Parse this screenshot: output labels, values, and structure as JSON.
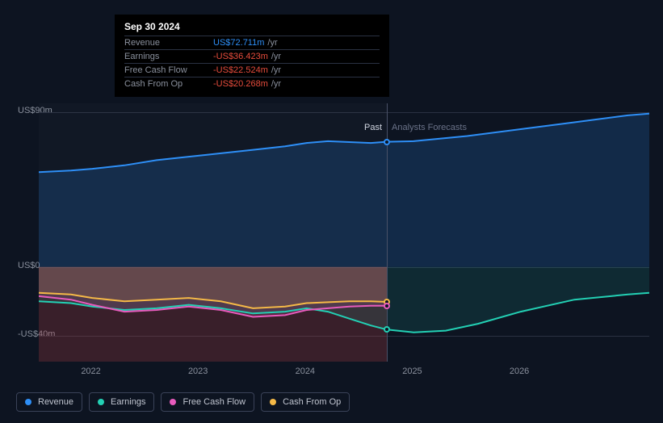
{
  "tooltip": {
    "date": "Sep 30 2024",
    "rows": [
      {
        "label": "Revenue",
        "value": "US$72.711m",
        "unit": "/yr",
        "color": "#2e8ff7"
      },
      {
        "label": "Earnings",
        "value": "-US$36.423m",
        "unit": "/yr",
        "color": "#e74c3c"
      },
      {
        "label": "Free Cash Flow",
        "value": "-US$22.524m",
        "unit": "/yr",
        "color": "#e74c3c"
      },
      {
        "label": "Cash From Op",
        "value": "-US$20.268m",
        "unit": "/yr",
        "color": "#e74c3c"
      }
    ]
  },
  "chart": {
    "background": "#0d1421",
    "y_axis": {
      "labels": [
        {
          "text": "US$90m",
          "value": 90
        },
        {
          "text": "US$0",
          "value": 0
        },
        {
          "text": "-US$40m",
          "value": -40
        }
      ],
      "min": -55,
      "max": 95
    },
    "x_axis": {
      "labels": [
        "2022",
        "2023",
        "2024",
        "2025",
        "2026"
      ],
      "min": 2021.5,
      "max": 2027.2
    },
    "divider": {
      "x": 2024.75,
      "past_label": "Past",
      "past_color": "#d0d5e0",
      "forecast_label": "Analysts Forecasts",
      "forecast_color": "#6a7288"
    },
    "series": {
      "revenue": {
        "label": "Revenue",
        "color": "#2e8ff7",
        "fill": "rgba(46,143,247,0.18)",
        "points": [
          [
            2021.5,
            55
          ],
          [
            2021.8,
            56
          ],
          [
            2022.0,
            57
          ],
          [
            2022.3,
            59
          ],
          [
            2022.6,
            62
          ],
          [
            2022.9,
            64
          ],
          [
            2023.2,
            66
          ],
          [
            2023.5,
            68
          ],
          [
            2023.8,
            70
          ],
          [
            2024.0,
            72
          ],
          [
            2024.2,
            73
          ],
          [
            2024.4,
            72.5
          ],
          [
            2024.6,
            72
          ],
          [
            2024.75,
            72.7
          ],
          [
            2025.0,
            73
          ],
          [
            2025.5,
            76
          ],
          [
            2026.0,
            80
          ],
          [
            2026.5,
            84
          ],
          [
            2027.0,
            88
          ],
          [
            2027.2,
            89
          ]
        ]
      },
      "earnings": {
        "label": "Earnings",
        "color": "#23d0b4",
        "fill": "rgba(35,208,180,0.12)",
        "points": [
          [
            2021.5,
            -20
          ],
          [
            2021.8,
            -21
          ],
          [
            2022.0,
            -23
          ],
          [
            2022.3,
            -25
          ],
          [
            2022.6,
            -24
          ],
          [
            2022.9,
            -22
          ],
          [
            2023.2,
            -24
          ],
          [
            2023.5,
            -27
          ],
          [
            2023.8,
            -26
          ],
          [
            2024.0,
            -24
          ],
          [
            2024.2,
            -26
          ],
          [
            2024.4,
            -30
          ],
          [
            2024.6,
            -34
          ],
          [
            2024.75,
            -36.4
          ],
          [
            2025.0,
            -38
          ],
          [
            2025.3,
            -37
          ],
          [
            2025.6,
            -33
          ],
          [
            2026.0,
            -26
          ],
          [
            2026.5,
            -19
          ],
          [
            2027.0,
            -16
          ],
          [
            2027.2,
            -15
          ]
        ]
      },
      "fcf": {
        "label": "Free Cash Flow",
        "color": "#e85bbd",
        "fill": "rgba(232,91,189,0.15)",
        "points": [
          [
            2021.5,
            -17
          ],
          [
            2021.8,
            -19
          ],
          [
            2022.0,
            -22
          ],
          [
            2022.3,
            -26
          ],
          [
            2022.6,
            -25
          ],
          [
            2022.9,
            -23
          ],
          [
            2023.2,
            -25
          ],
          [
            2023.5,
            -29
          ],
          [
            2023.8,
            -28
          ],
          [
            2024.0,
            -25
          ],
          [
            2024.2,
            -24
          ],
          [
            2024.4,
            -23
          ],
          [
            2024.6,
            -22.5
          ],
          [
            2024.75,
            -22.5
          ]
        ]
      },
      "cfo": {
        "label": "Cash From Op",
        "color": "#f5b947",
        "fill": "rgba(245,185,71,0.12)",
        "points": [
          [
            2021.5,
            -15
          ],
          [
            2021.8,
            -16
          ],
          [
            2022.0,
            -18
          ],
          [
            2022.3,
            -20
          ],
          [
            2022.6,
            -19
          ],
          [
            2022.9,
            -18
          ],
          [
            2023.2,
            -20
          ],
          [
            2023.5,
            -24
          ],
          [
            2023.8,
            -23
          ],
          [
            2024.0,
            -21
          ],
          [
            2024.2,
            -20.5
          ],
          [
            2024.4,
            -20
          ],
          [
            2024.6,
            -20
          ],
          [
            2024.75,
            -20.3
          ]
        ]
      }
    },
    "end_markers": [
      {
        "series": "revenue",
        "x": 2024.75,
        "y": 72.7,
        "color": "#2e8ff7"
      },
      {
        "series": "earnings",
        "x": 2024.75,
        "y": -36.4,
        "color": "#23d0b4"
      },
      {
        "series": "cfo",
        "x": 2024.75,
        "y": -20.3,
        "color": "#f5b947"
      },
      {
        "series": "fcf",
        "x": 2024.75,
        "y": -22.5,
        "color": "#e85bbd"
      }
    ],
    "negative_fill": "rgba(180,50,60,0.25)"
  },
  "legend": [
    {
      "key": "revenue",
      "label": "Revenue",
      "color": "#2e8ff7"
    },
    {
      "key": "earnings",
      "label": "Earnings",
      "color": "#23d0b4"
    },
    {
      "key": "fcf",
      "label": "Free Cash Flow",
      "color": "#e85bbd"
    },
    {
      "key": "cfo",
      "label": "Cash From Op",
      "color": "#f5b947"
    }
  ]
}
